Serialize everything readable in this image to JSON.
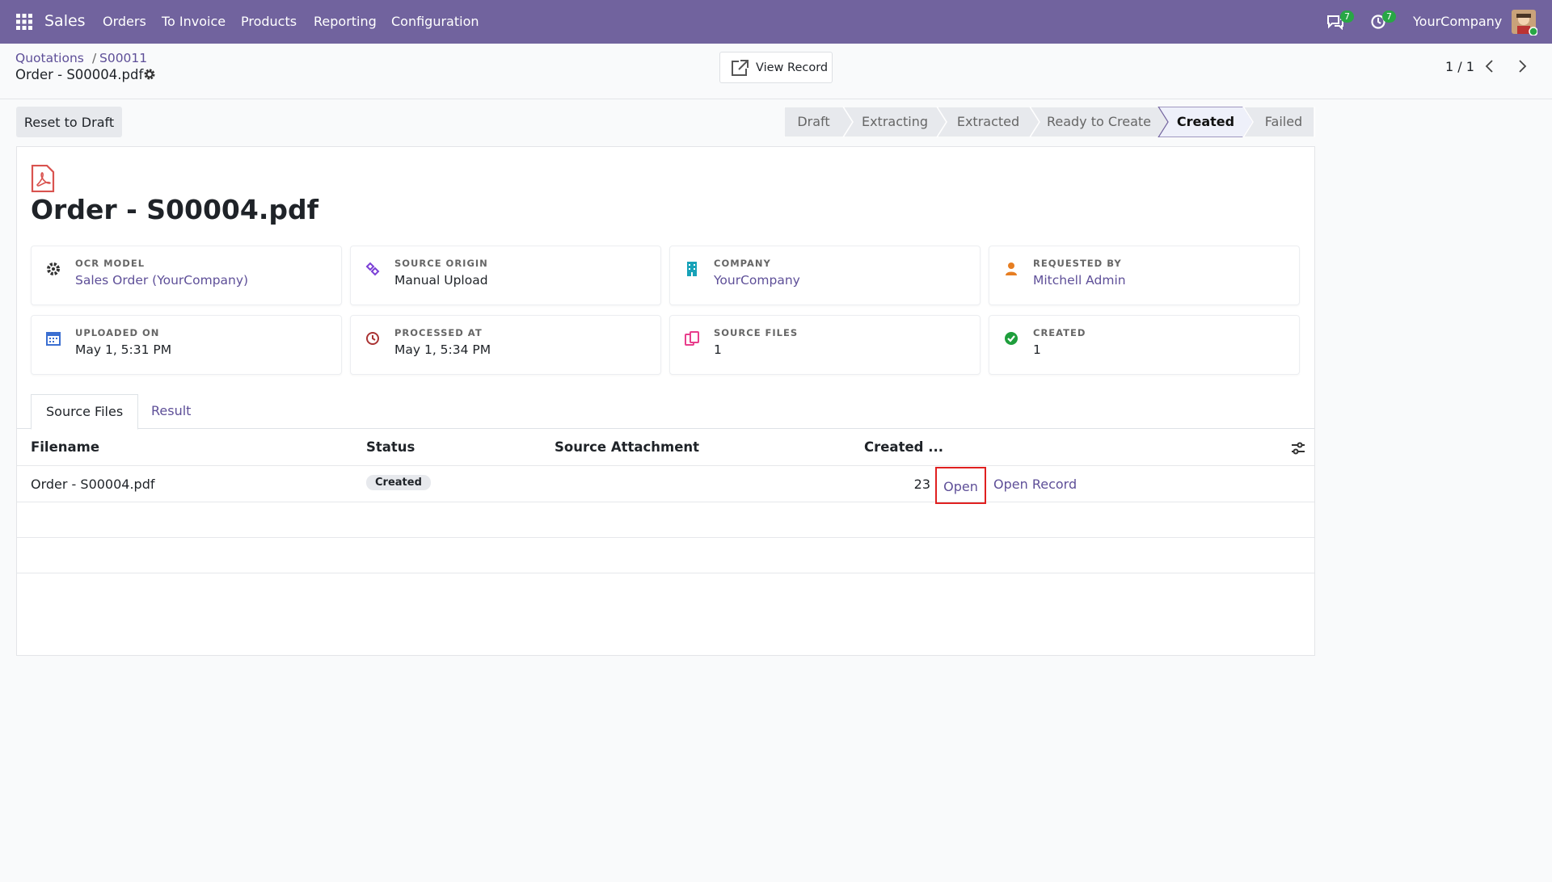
{
  "navbar": {
    "app": "Sales",
    "menu": [
      "Orders",
      "To Invoice",
      "Products",
      "Reporting",
      "Configuration"
    ],
    "messages_count": 7,
    "activities_count": 7,
    "company": "YourCompany"
  },
  "breadcrumb": {
    "items": [
      "Quotations",
      "S00011"
    ],
    "current": "Order - S00004.pdf"
  },
  "control_panel": {
    "view_record": "View Record",
    "pager": "1 / 1"
  },
  "actions": {
    "reset": "Reset to Draft"
  },
  "status_bar": {
    "stages": [
      "Draft",
      "Extracting",
      "Extracted",
      "Ready to Create",
      "Created",
      "Failed"
    ],
    "active_index": 4
  },
  "record": {
    "title": "Order - S00004.pdf",
    "fields": [
      {
        "label": "OCR MODEL",
        "value": "Sales Order (YourCompany)"
      },
      {
        "label": "SOURCE ORIGIN",
        "value": "Manual Upload"
      },
      {
        "label": "COMPANY",
        "value": "YourCompany"
      },
      {
        "label": "REQUESTED BY",
        "value": "Mitchell Admin"
      },
      {
        "label": "UPLOADED ON",
        "value": "May 1, 5:31 PM"
      },
      {
        "label": "PROCESSED AT",
        "value": "May 1, 5:34 PM"
      },
      {
        "label": "SOURCE FILES",
        "value": 1
      },
      {
        "label": "CREATED",
        "value": 1
      }
    ]
  },
  "tabs": {
    "items": [
      "Source Files",
      "Result"
    ],
    "active_index": 0
  },
  "table": {
    "columns": [
      "Filename",
      "Status",
      "Source Attachment",
      "Created ..."
    ],
    "rows": [
      {
        "filename": "Order - S00004.pdf",
        "status": "Created",
        "created": 23,
        "actions": [
          "Open",
          "Open Record"
        ]
      }
    ]
  }
}
